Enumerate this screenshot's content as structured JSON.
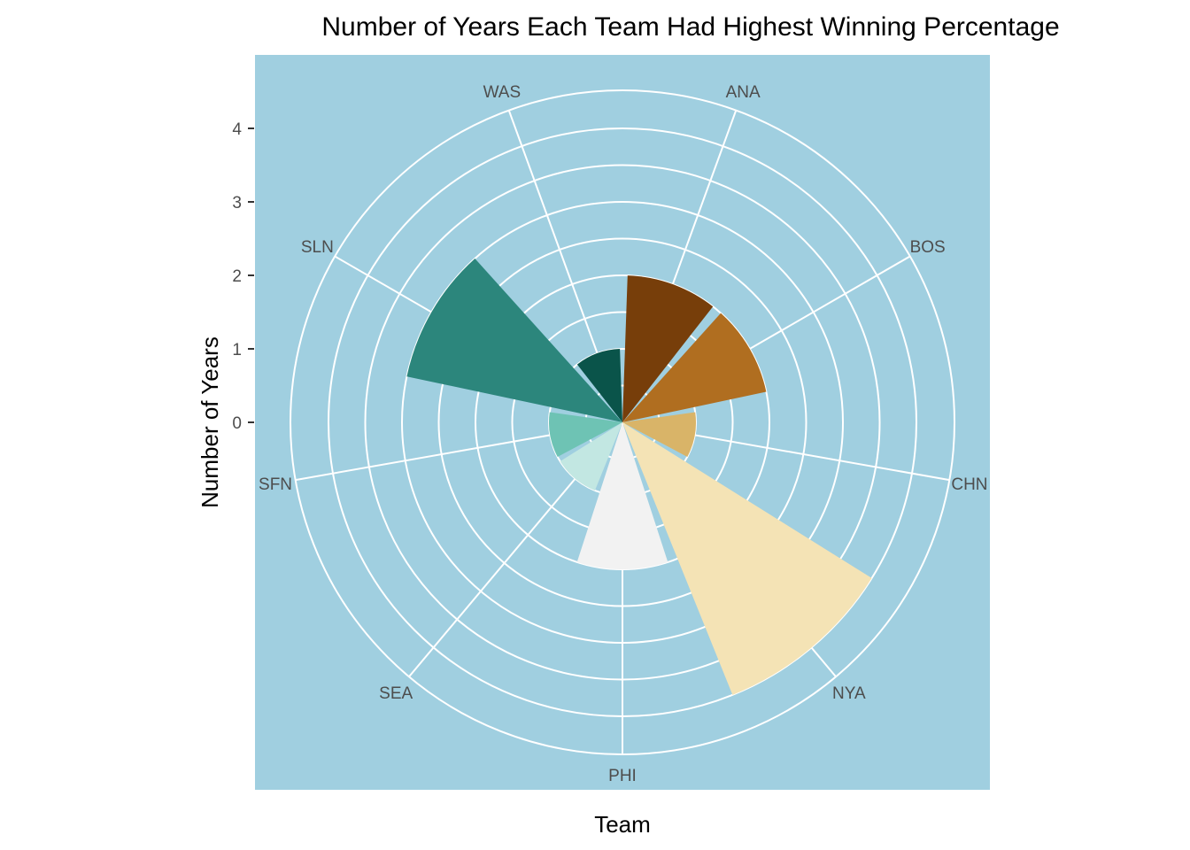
{
  "chart_data": {
    "type": "bar",
    "coord": "polar",
    "title": "Number of Years Each Team Had Highest Winning Percentage",
    "xlabel": "Team",
    "ylabel": "Number of Years",
    "categories": [
      "ANA",
      "BOS",
      "CHN",
      "NYA",
      "PHI",
      "SEA",
      "SFN",
      "SLN",
      "WAS"
    ],
    "values": [
      2,
      2,
      1,
      4,
      2,
      1,
      1,
      3,
      1
    ],
    "colors": [
      "#773E0A",
      "#B06E20",
      "#D9B468",
      "#F4E3B5",
      "#F2F2F2",
      "#C2E7E2",
      "#6EC3B4",
      "#2C867C",
      "#0A544A"
    ],
    "y_ticks": [
      0,
      1,
      2,
      3,
      4
    ],
    "ylim": [
      0,
      4
    ],
    "panel_background": "#A0CFE0",
    "grid_color": "#FFFFFF",
    "grid": true,
    "legend": "none"
  }
}
